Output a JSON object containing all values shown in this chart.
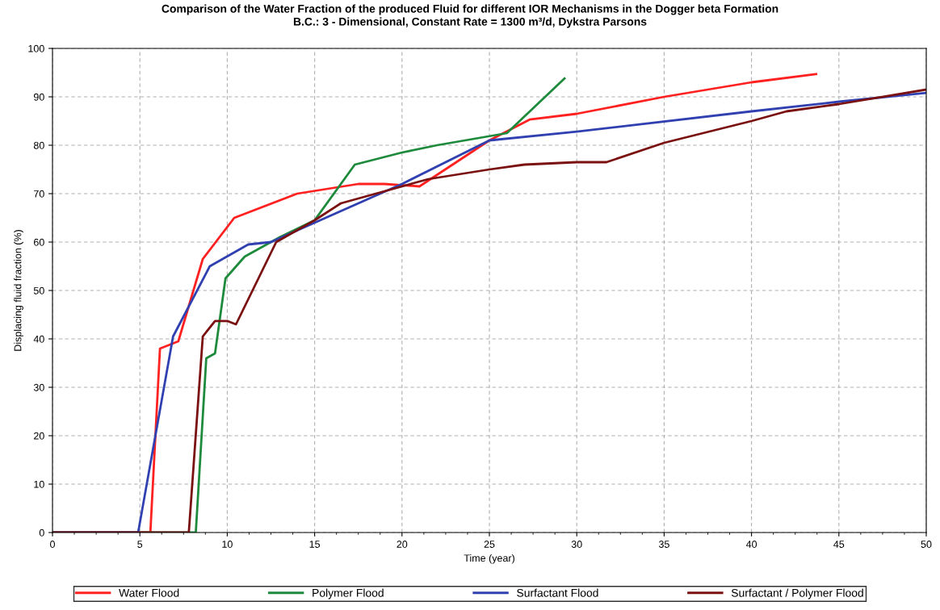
{
  "chart_data": {
    "type": "line",
    "title": "Comparison of the Water Fraction of the produced Fluid for different IOR Mechanisms in the Dogger beta Formation",
    "subtitle": "B.C.: 3 - Dimensional, Constant Rate = 1300 m³/d, Dykstra Parsons",
    "xlabel": "Time (year)",
    "ylabel": "Displacing fluid fraction (%)",
    "xlim": [
      0,
      50
    ],
    "xticks": [
      0,
      5,
      10,
      15,
      20,
      25,
      30,
      35,
      40,
      45,
      50
    ],
    "ylim": [
      0,
      100
    ],
    "yticks": [
      0,
      10,
      20,
      30,
      40,
      50,
      60,
      70,
      80,
      90,
      100
    ],
    "grid": true,
    "legend": "bottom",
    "marker": "none",
    "line_style": "solid",
    "series": [
      {
        "name": "Water Flood",
        "color": "#ff2020",
        "x": [
          0,
          5.6,
          6.15,
          7.2,
          8.6,
          10.4,
          14,
          17.5,
          19,
          21,
          25,
          27.3,
          30,
          35,
          40,
          43.7
        ],
        "values": [
          0,
          0,
          38,
          39.5,
          56.5,
          65,
          70,
          72,
          72,
          71.5,
          81,
          85.3,
          86.5,
          90,
          93,
          94.7
        ]
      },
      {
        "name": "Polymer Flood",
        "color": "#1e8a3c",
        "x": [
          0,
          8.2,
          8.8,
          9.3,
          9.9,
          11,
          13,
          15,
          17.3,
          20,
          22,
          26,
          29.3
        ],
        "values": [
          0,
          0,
          36,
          37,
          52.5,
          57,
          61,
          64.5,
          76,
          78.5,
          80,
          82.5,
          93.8
        ]
      },
      {
        "name": "Surfactant Flood",
        "color": "#3040b0",
        "x": [
          0,
          4.9,
          6.9,
          9,
          11.2,
          12.5,
          15,
          20,
          25,
          30,
          40,
          45,
          50
        ],
        "values": [
          0,
          0,
          40.5,
          55,
          59.5,
          60,
          64,
          72,
          81,
          82.8,
          87,
          89,
          90.8
        ]
      },
      {
        "name": "Surfactant / Polymer Flood",
        "color": "#7a1010",
        "x": [
          0,
          7.8,
          8.6,
          9.3,
          10,
          10.5,
          12.8,
          15,
          16.5,
          20,
          21.5,
          25,
          27,
          30,
          31.7,
          35,
          40,
          42,
          45,
          50
        ],
        "values": [
          0,
          0,
          40.5,
          43.7,
          43.7,
          43,
          60,
          64.5,
          68,
          71.5,
          73,
          75,
          76,
          76.5,
          76.5,
          80.5,
          85,
          87,
          88.5,
          91.5
        ]
      }
    ]
  }
}
